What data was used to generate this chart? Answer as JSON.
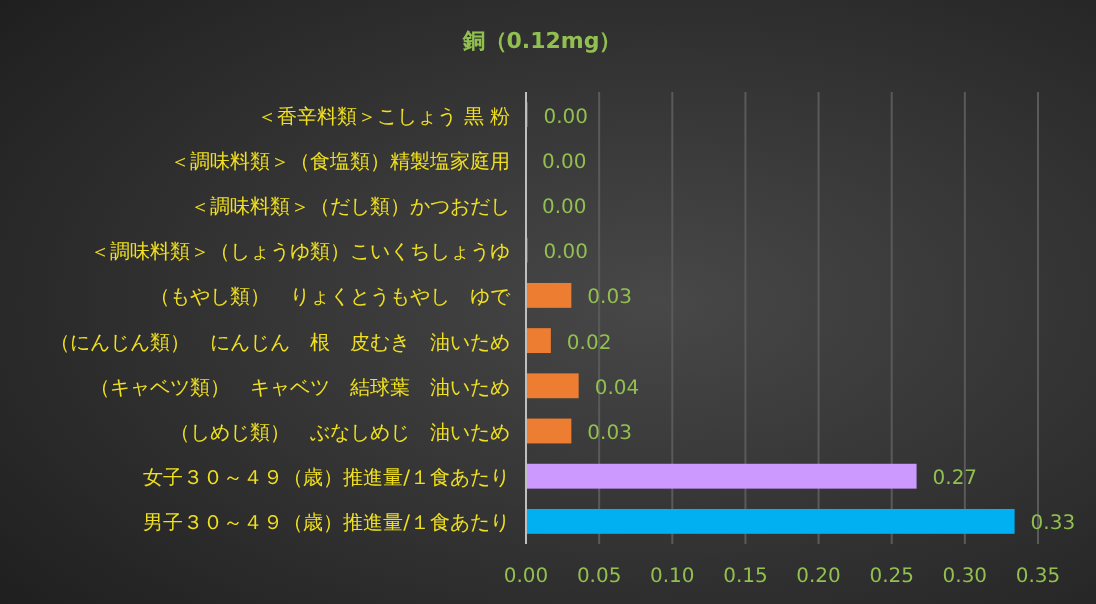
{
  "chart_data": {
    "type": "bar",
    "orientation": "horizontal",
    "title": "銅（0.12mg）",
    "categories": [
      "＜香辛料類＞こしょう 黒 粉",
      "＜調味料類＞（食塩類）精製塩家庭用",
      "＜調味料類＞（だし類）かつおだし",
      "＜調味料類＞（しょうゆ類）こいくちしょうゆ",
      "（もやし類）　りょくとうもやし　ゆで",
      "（にんじん類）　にんじん　根　皮むき　油いため",
      "（キャベツ類）　キャベツ　結球葉　油いため",
      "（しめじ類）　ぶなしめじ　油いため",
      "女子３０～４９（歳）推進量/１食あたり",
      "男子３０～４９（歳）推進量/１食あたり"
    ],
    "values": [
      0.001,
      0,
      0,
      0.001,
      0.031,
      0.017,
      0.036,
      0.031,
      0.267,
      0.334
    ],
    "value_labels": [
      "0.00",
      "0.00",
      "0.00",
      "0.00",
      "0.03",
      "0.02",
      "0.04",
      "0.03",
      "0.27",
      "0.33"
    ],
    "colors": [
      "#ed7d31",
      "#ed7d31",
      "#ed7d31",
      "#ed7d31",
      "#ed7d31",
      "#ed7d31",
      "#ed7d31",
      "#ed7d31",
      "#cc99ff",
      "#00b0f0"
    ],
    "xlim": [
      0,
      0.35
    ],
    "xticks": [
      {
        "value": 0,
        "label": "0.00"
      },
      {
        "value": 0.05,
        "label": "0.05"
      },
      {
        "value": 0.1,
        "label": "0.10"
      },
      {
        "value": 0.15,
        "label": "0.15"
      },
      {
        "value": 0.2,
        "label": "0.20"
      },
      {
        "value": 0.25,
        "label": "0.25"
      },
      {
        "value": 0.3,
        "label": "0.30"
      },
      {
        "value": 0.35,
        "label": "0.35"
      }
    ],
    "grid": "x"
  }
}
